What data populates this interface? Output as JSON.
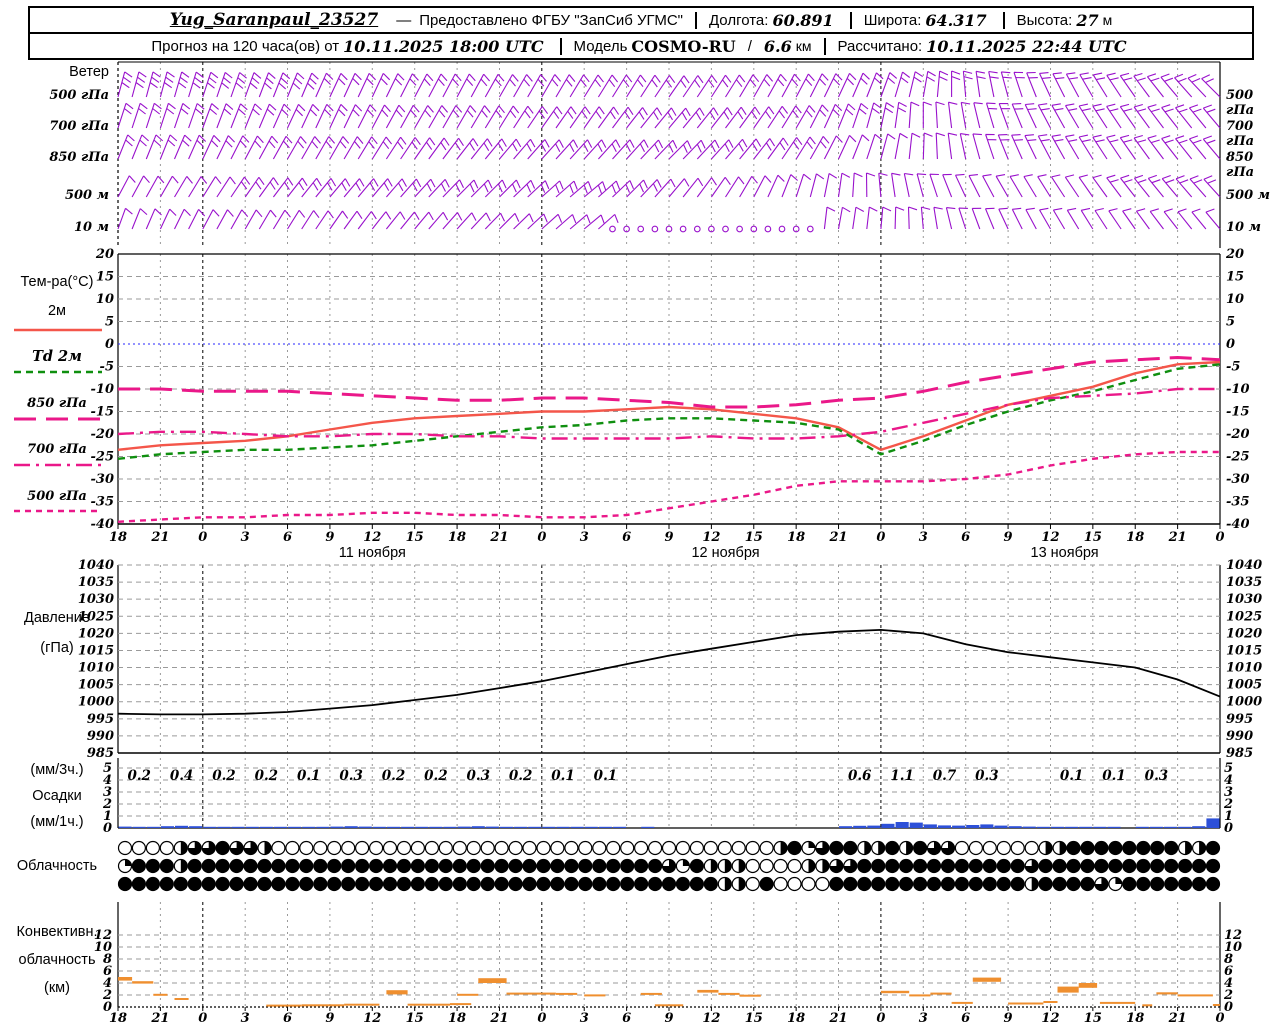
{
  "header": {
    "line1": {
      "station": "Yug_Saranpaul_23527",
      "dash": "—",
      "provider": "Предоставлено ФГБУ \"ЗапСиб УГМС\"",
      "lon_label": "Долгота:",
      "lon": "60.891",
      "lat_label": "Широта:",
      "lat": "64.317",
      "alt_label": "Высота:",
      "alt": "27",
      "alt_unit": "м"
    },
    "line2": {
      "forecast_label": "Прогноз на 120 часа(ов) от",
      "run_time": "10.11.2025 18:00 UTC",
      "model_label": "Модель",
      "model": "COSMO-RU",
      "slash": "/",
      "resolution": "6.6",
      "res_unit": "км",
      "calc_label": "Рассчитано:",
      "calc_time": "10.11.2025 22:44 UTC"
    }
  },
  "colors": {
    "purple": "#9911cc",
    "red": "#f4564a",
    "green": "#0f8f0f",
    "pink": "#ea1889",
    "blue": "#2d50d8",
    "orange": "#ef8f2f",
    "grid": "#9a9a9a",
    "midnight": "#000000",
    "zero_line": "#2525ff"
  },
  "xaxis": {
    "hours_total": 78,
    "step": 3,
    "hour_labels": [
      "18",
      "21",
      "0",
      "3",
      "6",
      "9",
      "12",
      "15",
      "18",
      "21",
      "0",
      "3",
      "6",
      "9",
      "12",
      "15",
      "18",
      "21",
      "0",
      "3",
      "6",
      "9",
      "12",
      "15",
      "18",
      "21",
      "0"
    ],
    "day_labels": [
      {
        "text": "11 ноября",
        "t": 18
      },
      {
        "text": "12 ноября",
        "t": 43
      },
      {
        "text": "13 ноября",
        "t": 67
      }
    ]
  },
  "chart_data": [
    {
      "id": "wind",
      "type": "wind-barbs",
      "title": "Ветер",
      "levels": [
        "500 гПа",
        "700 гПа",
        "850 гПа",
        "500 м",
        "10 м"
      ],
      "t_step": 3,
      "dirs": [
        [
          15,
          15,
          18,
          20,
          22,
          25,
          25,
          28,
          28,
          30,
          30,
          32,
          32,
          35,
          33,
          30,
          28,
          25,
          20,
          10,
          -5,
          -15,
          -25,
          -30,
          -35,
          -40,
          -45
        ],
        [
          18,
          18,
          20,
          22,
          25,
          25,
          28,
          30,
          30,
          32,
          35,
          35,
          38,
          40,
          38,
          35,
          30,
          22,
          12,
          0,
          -10,
          -20,
          -28,
          -32,
          -35,
          -38,
          -40
        ],
        [
          22,
          22,
          25,
          28,
          30,
          30,
          32,
          35,
          38,
          40,
          42,
          42,
          42,
          45,
          42,
          38,
          32,
          25,
          15,
          2,
          -12,
          -22,
          -28,
          -32,
          -35,
          -38,
          -40
        ],
        [
          28,
          30,
          32,
          35,
          38,
          40,
          40,
          42,
          45,
          45,
          48,
          50,
          45,
          40,
          35,
          28,
          18,
          8,
          -5,
          -15,
          -25,
          -30,
          -32,
          -35,
          -38,
          -40,
          -42
        ],
        [
          20,
          25,
          28,
          30,
          32,
          35,
          38,
          40,
          42,
          45,
          48,
          50,
          45,
          40,
          0,
          0,
          0,
          10,
          5,
          -5,
          -18,
          -25,
          -30,
          -32,
          -35,
          -38,
          -40
        ]
      ],
      "spd": [
        [
          3,
          3,
          3,
          3,
          3,
          2,
          2,
          2,
          2,
          2,
          2,
          2,
          2,
          2,
          2,
          2,
          2,
          2,
          2,
          2,
          2,
          2,
          2,
          2,
          2,
          2,
          2
        ],
        [
          2,
          2,
          2,
          2,
          2,
          2,
          2,
          2,
          2,
          2,
          2,
          2,
          2,
          2,
          2,
          2,
          2,
          2,
          2,
          1,
          1,
          2,
          2,
          2,
          2,
          2,
          2
        ],
        [
          2,
          2,
          2,
          2,
          2,
          2,
          2,
          2,
          2,
          2,
          2,
          2,
          2,
          2,
          2,
          2,
          2,
          1,
          1,
          1,
          1,
          2,
          2,
          2,
          2,
          2,
          2
        ],
        [
          1,
          1,
          1,
          2,
          2,
          2,
          2,
          2,
          2,
          2,
          2,
          2,
          2,
          1,
          1,
          1,
          1,
          1,
          1,
          1,
          1,
          1,
          1,
          1,
          2,
          2,
          2
        ],
        [
          1,
          1,
          1,
          1,
          1,
          1,
          1,
          1,
          1,
          1,
          1,
          1,
          0,
          0,
          0,
          0,
          0,
          1,
          1,
          1,
          1,
          1,
          1,
          1,
          1,
          1,
          1
        ]
      ]
    },
    {
      "id": "temp",
      "type": "line",
      "title": "Тем-ра(°C)",
      "ylim": [
        -40,
        20
      ],
      "ytick_step": 5,
      "zero_line_value": 0,
      "x_step": 3,
      "series": [
        {
          "name": "2м",
          "color": "#f4564a",
          "dash": "none",
          "width": 2.4,
          "values": [
            -23.5,
            -22.5,
            -22,
            -21.5,
            -20.5,
            -19,
            -17.5,
            -16.5,
            -16,
            -15.5,
            -15,
            -15,
            -14.5,
            -14,
            -14.5,
            -15.5,
            -16.5,
            -18.5,
            -23.5,
            -20.5,
            -17,
            -13.5,
            -11.5,
            -9.5,
            -6.5,
            -4.5,
            -4
          ]
        },
        {
          "name": "Td  2м",
          "color": "#0f8f0f",
          "dash": "7 5",
          "width": 2.4,
          "values": [
            -25.5,
            -24.5,
            -24,
            -23.5,
            -23.5,
            -23,
            -22.5,
            -21.5,
            -20.5,
            -19.5,
            -18.5,
            -18,
            -17,
            -16.5,
            -16.5,
            -17,
            -17.5,
            -19,
            -24.5,
            -21.5,
            -18,
            -15,
            -12.5,
            -10.5,
            -8,
            -5.5,
            -4.5
          ]
        },
        {
          "name": "850 гПа",
          "color": "#ea1889",
          "dash": "22 10",
          "width": 3,
          "values": [
            -10,
            -10,
            -10.5,
            -10.5,
            -10.5,
            -11,
            -11.5,
            -12,
            -12.5,
            -12.5,
            -12,
            -12,
            -12.5,
            -13,
            -14,
            -14,
            -13.5,
            -12.5,
            -12,
            -10.5,
            -8.5,
            -7,
            -5.5,
            -4,
            -3.5,
            -3,
            -3.5
          ]
        },
        {
          "name": "700 гПа",
          "color": "#ea1889",
          "dash": "16 6 3 6",
          "width": 2.4,
          "values": [
            -20,
            -19.5,
            -19.5,
            -20,
            -20.5,
            -20.5,
            -20,
            -20,
            -20.5,
            -20.5,
            -21,
            -21,
            -21,
            -21,
            -20.5,
            -21,
            -21,
            -20.5,
            -19.5,
            -17.5,
            -15.5,
            -13.5,
            -12,
            -11.5,
            -11,
            -10,
            -10
          ]
        },
        {
          "name": "500 гПа",
          "color": "#ea1889",
          "dash": "6 5",
          "width": 2.4,
          "values": [
            -39.5,
            -39,
            -38.5,
            -38.5,
            -38,
            -38,
            -37.5,
            -37.5,
            -38,
            -38,
            -38.5,
            -38.5,
            -38,
            -36.5,
            -35,
            -33.5,
            -31.5,
            -30.5,
            -30.5,
            -30.5,
            -30,
            -29,
            -27,
            -25.5,
            -24.5,
            -24,
            -24
          ]
        }
      ]
    },
    {
      "id": "pressure",
      "type": "line",
      "title_lines": [
        "Давление",
        "(гПа)"
      ],
      "ylim": [
        985,
        1040
      ],
      "ytick_step": 5,
      "x_step": 3,
      "values": [
        996.5,
        996.3,
        996.3,
        996.5,
        997,
        998,
        999,
        1000.5,
        1002,
        1004,
        1006,
        1008.5,
        1011,
        1013.5,
        1015.5,
        1017.5,
        1019.5,
        1020.5,
        1021,
        1020,
        1016.8,
        1014.5,
        1013,
        1011.5,
        1010,
        1006.5,
        1001.5
      ]
    },
    {
      "id": "precip",
      "type": "bar",
      "unit_top": "(мм/3ч.)",
      "title": "Осадки",
      "unit_bottom": "(мм/1ч.)",
      "ylim": [
        0,
        5
      ],
      "ytick_step": 1,
      "labels_3h": [
        "0.2",
        "0.4",
        "0.2",
        "0.2",
        "0.1",
        "0.3",
        "0.2",
        "0.2",
        "0.3",
        "0.2",
        "0.1",
        "0.1",
        null,
        null,
        null,
        null,
        null,
        "0.6",
        "1.1",
        "0.7",
        "0.3",
        null,
        "0.1",
        "0.1",
        "0.3",
        null
      ],
      "hourly": [
        0.12,
        0.1,
        0.1,
        0.15,
        0.18,
        0.15,
        0.1,
        0.1,
        0.1,
        0.08,
        0.1,
        0.1,
        0.05,
        0.06,
        0.05,
        0.12,
        0.15,
        0.12,
        0.1,
        0.08,
        0.1,
        0.08,
        0.1,
        0.08,
        0.12,
        0.15,
        0.12,
        0.1,
        0.08,
        0.08,
        0.05,
        0.05,
        0.04,
        0.05,
        0.04,
        0.03,
        0,
        0.03,
        0,
        0,
        0,
        0,
        0,
        0,
        0,
        0,
        0,
        0,
        0,
        0,
        0,
        0.15,
        0.18,
        0.2,
        0.35,
        0.5,
        0.45,
        0.3,
        0.22,
        0.2,
        0.25,
        0.3,
        0.2,
        0.15,
        0.12,
        0.1,
        0.06,
        0.05,
        0.05,
        0.05,
        0.04,
        0,
        0.04,
        0.05,
        0.08,
        0.1,
        0.15,
        0.8
      ]
    },
    {
      "id": "cloud",
      "type": "cloud-cover",
      "title": "Облачность",
      "rows": [
        [
          0,
          0,
          0,
          0,
          0.5,
          0.75,
          0.75,
          1,
          0.75,
          0.75,
          0.5,
          0,
          0,
          0,
          0,
          0,
          0,
          0,
          0,
          0,
          0,
          0,
          0,
          0,
          0,
          0,
          0,
          0,
          0,
          0,
          0,
          0,
          0,
          0,
          0,
          0,
          0,
          0,
          0,
          0,
          0,
          0,
          0,
          0,
          0,
          0,
          0,
          0.5,
          1,
          0.25,
          0.75,
          1,
          1,
          0.5,
          0.5,
          1,
          0.5,
          1,
          0.75,
          0.75,
          0,
          0,
          0,
          0,
          0,
          0,
          0.5,
          0.5,
          1,
          1,
          1,
          1,
          1,
          1,
          1,
          1,
          0.5,
          0.5,
          1
        ],
        [
          0.25,
          1,
          1,
          1,
          0.5,
          1,
          1,
          1,
          1,
          1,
          1,
          1,
          1,
          1,
          1,
          1,
          1,
          1,
          1,
          1,
          1,
          1,
          1,
          1,
          1,
          1,
          1,
          1,
          1,
          1,
          1,
          1,
          1,
          1,
          1,
          1,
          1,
          1,
          1,
          0.75,
          0.25,
          1,
          0.5,
          0.5,
          0.5,
          0,
          0,
          0,
          0,
          0.5,
          0.5,
          0.75,
          0.75,
          1,
          1,
          1,
          1,
          1,
          1,
          1,
          1,
          1,
          1,
          1,
          1,
          0.75,
          1,
          1,
          1,
          1,
          1,
          1,
          1,
          1,
          1,
          1,
          1,
          1,
          1
        ],
        [
          1,
          1,
          1,
          1,
          1,
          1,
          1,
          1,
          1,
          1,
          1,
          1,
          1,
          1,
          1,
          1,
          1,
          1,
          1,
          1,
          1,
          1,
          1,
          1,
          1,
          1,
          1,
          1,
          1,
          1,
          1,
          1,
          1,
          1,
          1,
          1,
          1,
          1,
          1,
          1,
          1,
          1,
          1,
          0.5,
          0.5,
          0,
          1,
          0,
          0,
          0,
          0,
          1,
          1,
          1,
          1,
          1,
          1,
          1,
          1,
          1,
          1,
          1,
          1,
          1,
          1,
          0.5,
          1,
          1,
          1,
          1,
          0.75,
          0.25,
          1,
          1,
          1,
          1,
          1,
          1,
          1
        ]
      ]
    },
    {
      "id": "conv",
      "type": "range-bar",
      "title_lines": [
        "Конвективн.",
        "облачность",
        "(км)"
      ],
      "ylim": [
        0,
        13
      ],
      "ytick_step": 2,
      "segments": [
        [
          0,
          1,
          4.4,
          5.0
        ],
        [
          1,
          2.5,
          3.9,
          4.3
        ],
        [
          2.5,
          3.5,
          1.9,
          2.2
        ],
        [
          4,
          5,
          1.3,
          1.5
        ],
        [
          10.5,
          13,
          0.25,
          0.4
        ],
        [
          13,
          16,
          0.3,
          0.45
        ],
        [
          16,
          18.5,
          0.35,
          0.55
        ],
        [
          19,
          20.5,
          2.1,
          2.8
        ],
        [
          20.5,
          23.5,
          0.35,
          0.55
        ],
        [
          23.5,
          25,
          0.45,
          0.65
        ],
        [
          24,
          25.5,
          1.95,
          2.2
        ],
        [
          25.5,
          27.5,
          4.0,
          4.8
        ],
        [
          27.5,
          31,
          2.1,
          2.4
        ],
        [
          31,
          32.5,
          2.1,
          2.35
        ],
        [
          33,
          34.5,
          1.9,
          2.1
        ],
        [
          37,
          38.5,
          2.1,
          2.35
        ],
        [
          38,
          40,
          0.3,
          0.45
        ],
        [
          41,
          42.5,
          2.4,
          2.85
        ],
        [
          42.5,
          44,
          2.1,
          2.35
        ],
        [
          44,
          45.5,
          1.85,
          2.05
        ],
        [
          54,
          56,
          2.3,
          2.7
        ],
        [
          56,
          57.5,
          1.85,
          2.1
        ],
        [
          57.5,
          59,
          2.1,
          2.4
        ],
        [
          59,
          60.5,
          0.6,
          0.85
        ],
        [
          60.5,
          62.5,
          4.2,
          4.9
        ],
        [
          63,
          65.5,
          0.55,
          0.75
        ],
        [
          65.5,
          66.5,
          0.75,
          1.0
        ],
        [
          66.5,
          68,
          2.4,
          3.4
        ],
        [
          68,
          69.3,
          3.2,
          4.0
        ],
        [
          69.5,
          72,
          0.6,
          0.85
        ],
        [
          72.5,
          73.2,
          0.25,
          0.45
        ],
        [
          73.5,
          75,
          2.1,
          2.45
        ],
        [
          75,
          77.5,
          1.85,
          2.1
        ],
        [
          77.5,
          78,
          0.3,
          0.5
        ]
      ]
    }
  ]
}
